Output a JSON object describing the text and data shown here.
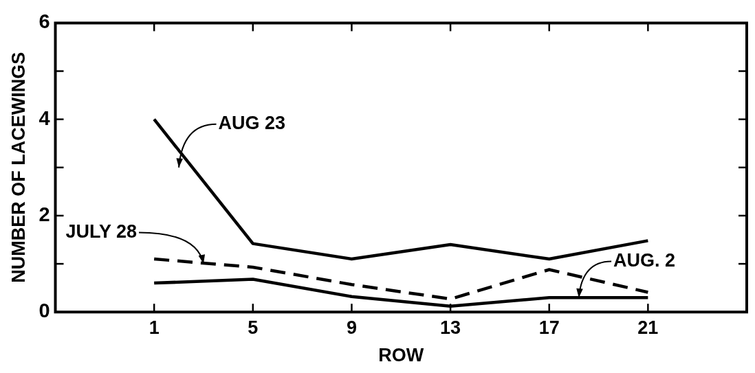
{
  "chart_data": {
    "type": "line",
    "xlabel": "ROW",
    "ylabel": "NUMBER OF LACEWINGS",
    "x": [
      1,
      5,
      9,
      13,
      17,
      21
    ],
    "xlim": [
      -3,
      25
    ],
    "xticks": [
      1,
      5,
      9,
      13,
      17,
      21
    ],
    "ylim": [
      0,
      6
    ],
    "yticks": [
      0,
      {
        "value": 1,
        "label": null
      },
      2,
      {
        "value": 3,
        "label": null
      },
      4,
      {
        "value": 5,
        "label": null
      },
      6
    ],
    "grid": false,
    "legend": false,
    "marker": "none",
    "series": [
      {
        "name": "AUG 23",
        "color": "#000000",
        "line_style": "solid",
        "values": [
          4.0,
          1.42,
          1.1,
          1.4,
          1.1,
          1.48
        ]
      },
      {
        "name": "JULY 28",
        "color": "#000000",
        "line_style": "dashed",
        "values": [
          1.1,
          0.93,
          0.57,
          0.27,
          0.88,
          0.41
        ]
      },
      {
        "name": "AUG. 2",
        "color": "#000000",
        "line_style": "solid",
        "values": [
          0.6,
          0.68,
          0.32,
          0.12,
          0.3,
          0.3
        ]
      }
    ]
  }
}
